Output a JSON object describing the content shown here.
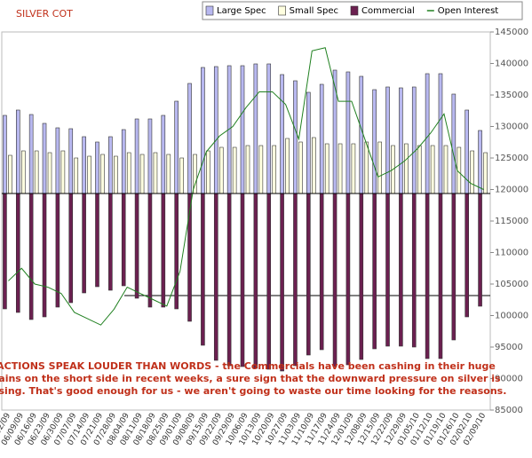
{
  "chart_data": {
    "type": "bar",
    "title": "SILVER COT",
    "categories": [
      "06/02/09",
      "06/09/09",
      "06/16/09",
      "06/23/09",
      "06/30/09",
      "07/07/09",
      "07/14/09",
      "07/21/09",
      "07/28/09",
      "08/04/09",
      "08/11/09",
      "08/18/09",
      "08/25/09",
      "09/01/09",
      "09/08/09",
      "09/15/09",
      "09/22/09",
      "09/29/09",
      "10/06/09",
      "10/13/09",
      "10/20/09",
      "10/27/09",
      "11/03/09",
      "11/10/09",
      "11/17/09",
      "11/24/09",
      "12/01/09",
      "12/08/09",
      "12/15/09",
      "12/22/09",
      "12/29/09",
      "01/05/10",
      "01/12/10",
      "01/19/10",
      "01/26/10",
      "02/02/10",
      "02/09/10"
    ],
    "ylim": [
      -244,
      182
    ],
    "y2lim": [
      85000,
      145000
    ],
    "y2ticks": [
      145000,
      140000,
      135000,
      130000,
      125000,
      120000,
      115000,
      110000,
      105000,
      100000,
      95000,
      90000,
      85000
    ],
    "legend": "top-right",
    "series": [
      {
        "name": "Large Spec",
        "type": "bar",
        "color": "#b8b8f0",
        "values": [
          88,
          94,
          89,
          79,
          74,
          73,
          64,
          58,
          64,
          72,
          84,
          84,
          88,
          104,
          124,
          142,
          143,
          144,
          144,
          146,
          146,
          134,
          127,
          114,
          123,
          139,
          137,
          132,
          117,
          120,
          119,
          120,
          135,
          135,
          112,
          94,
          71
        ]
      },
      {
        "name": "Small Spec",
        "type": "bar",
        "color": "#ffffe0",
        "values": [
          43,
          48,
          48,
          46,
          48,
          40,
          42,
          44,
          42,
          46,
          44,
          46,
          44,
          40,
          44,
          48,
          52,
          52,
          54,
          54,
          54,
          62,
          58,
          63,
          56,
          56,
          56,
          58,
          58,
          54,
          56,
          54,
          54,
          54,
          52,
          48,
          46
        ]
      },
      {
        "name": "Commercial",
        "type": "bar",
        "color": "#6b2050",
        "values": [
          -130,
          -134,
          -142,
          -139,
          -128,
          -123,
          -112,
          -105,
          -109,
          -104,
          -118,
          -128,
          -128,
          -130,
          -144,
          -171,
          -188,
          -194,
          -195,
          -197,
          -198,
          -200,
          -194,
          -182,
          -176,
          -195,
          -193,
          -187,
          -175,
          -172,
          -172,
          -173,
          -186,
          -186,
          -165,
          -139,
          -127
        ]
      },
      {
        "name": "Open Interest",
        "type": "line",
        "axis": "y2",
        "color": "#208020",
        "values": [
          105500,
          107500,
          105000,
          104500,
          103500,
          100500,
          99500,
          98500,
          101000,
          104500,
          103500,
          102500,
          101500,
          107000,
          120000,
          126000,
          128500,
          130000,
          133000,
          135500,
          135500,
          133500,
          128000,
          142000,
          142500,
          134000,
          134000,
          128000,
          122000,
          123000,
          124500,
          126500,
          129000,
          132000,
          123000,
          121000,
          120000
        ]
      }
    ],
    "annotation": [
      "ACTIONS SPEAK LOUDER THAN WORDS - the Commercials have been cashing in their huge",
      "gains on the short side in recent weeks, a sure sign that the downward pressure on silver is",
      "easing. That's good enough for us - we aren't going to waste our time looking for the reasons."
    ]
  }
}
